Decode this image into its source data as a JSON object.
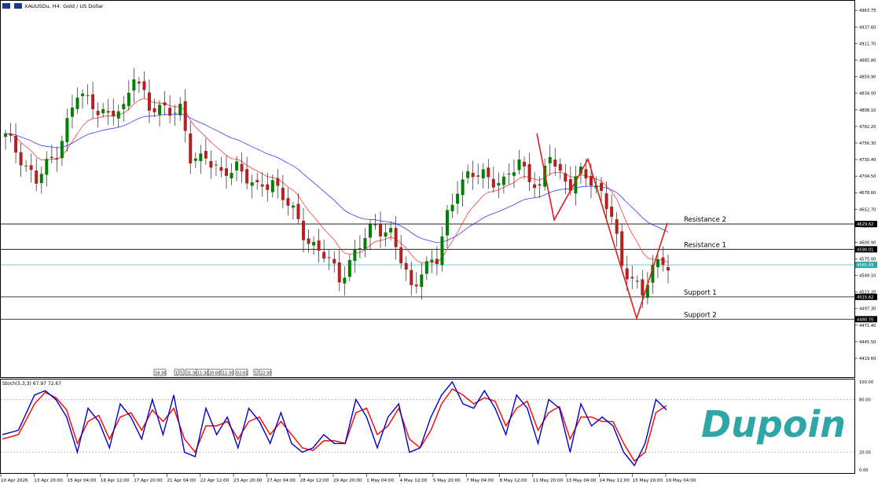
{
  "header": {
    "symbol_text": "XAUUSDu, H4:  Gold / US Dollar"
  },
  "oscillator": {
    "label": "Stoch(5,3,3) 67.97 72.67",
    "levels": [
      "100.00",
      "80.00",
      "20.00",
      "0.00"
    ],
    "main_color": "#0000cc",
    "signal_color": "#ff0000"
  },
  "levels": [
    {
      "name": "Resistance 2",
      "value": 4629.62,
      "tag": "4629.62"
    },
    {
      "name": "Resistance 1",
      "value": 4590.01,
      "tag": "4590.01"
    },
    {
      "name": "Support 1",
      "value": 4515.62,
      "tag": "4515.62"
    },
    {
      "name": "Support 2",
      "value": 4480.7,
      "tag": "4480.70"
    }
  ],
  "current_price": {
    "value": 4565.69,
    "tag": "4565.69",
    "color": "#2fa6a6"
  },
  "period_boxes": [
    "18:30",
    "1",
    "1",
    "21:30",
    "11:30",
    "20:00",
    "11:30",
    "02:01",
    "1",
    "22:30"
  ],
  "logo": {
    "text": "Dupoin",
    "color": "#2fa6a6"
  },
  "colors": {
    "bull": "#008000",
    "bear": "#b22222",
    "ma_fast": "#ff3b3b",
    "ma_slow": "#3a3aff",
    "zigzag": "#e21b1b"
  },
  "chart_data": {
    "type": "candlestick",
    "title": "XAUUSDu, H4: Gold / US Dollar",
    "ylim": [
      4395,
      4975
    ],
    "y_ticks": [
      4963.75,
      4937.6,
      4911.7,
      4885.8,
      4859.9,
      4834.0,
      4808.1,
      4782.2,
      4756.3,
      4730.4,
      4704.5,
      4678.6,
      4652.7,
      4626.8,
      4600.9,
      4575.0,
      4549.1,
      4523.2,
      4497.3,
      4471.4,
      4445.5,
      4419.6
    ],
    "x_labels": [
      "10 Apr 2026",
      "13 Apr 20:00",
      "15 Apr 04:00",
      "16 Apr 12:00",
      "17 Apr 20:00",
      "21 Apr 04:00",
      "22 Apr 12:00",
      "23 Apr 20:00",
      "27 Apr 04:00",
      "28 Apr 12:00",
      "29 Apr 20:00",
      "1 May 04:00",
      "4 May 12:00",
      "5 May 20:00",
      "7 May 04:00",
      "8 May 12:00",
      "11 May 20:00",
      "13 May 04:00",
      "14 May 12:00",
      "15 May 20:00",
      "19 May 04:00"
    ],
    "close_anchors": [
      [
        0,
        4765
      ],
      [
        3,
        4735
      ],
      [
        6,
        4695
      ],
      [
        10,
        4745
      ],
      [
        14,
        4830
      ],
      [
        17,
        4820
      ],
      [
        20,
        4795
      ],
      [
        23,
        4810
      ],
      [
        25,
        4870
      ],
      [
        28,
        4805
      ],
      [
        31,
        4815
      ],
      [
        34,
        4805
      ],
      [
        36,
        4730
      ],
      [
        39,
        4740
      ],
      [
        42,
        4700
      ],
      [
        45,
        4725
      ],
      [
        49,
        4680
      ],
      [
        52,
        4700
      ],
      [
        55,
        4660
      ],
      [
        58,
        4615
      ],
      [
        62,
        4580
      ],
      [
        65,
        4545
      ],
      [
        68,
        4585
      ],
      [
        70,
        4605
      ],
      [
        72,
        4630
      ],
      [
        75,
        4615
      ],
      [
        77,
        4570
      ],
      [
        79,
        4530
      ],
      [
        81,
        4560
      ],
      [
        84,
        4570
      ],
      [
        86,
        4645
      ],
      [
        88,
        4690
      ],
      [
        90,
        4700
      ],
      [
        93,
        4710
      ],
      [
        95,
        4700
      ],
      [
        97,
        4690
      ],
      [
        100,
        4730
      ],
      [
        102,
        4705
      ],
      [
        104,
        4680
      ],
      [
        106,
        4740
      ],
      [
        108,
        4710
      ],
      [
        110,
        4690
      ],
      [
        112,
        4705
      ],
      [
        114,
        4700
      ],
      [
        116,
        4680
      ],
      [
        118,
        4640
      ],
      [
        120,
        4560
      ],
      [
        122,
        4550
      ],
      [
        124,
        4520
      ],
      [
        126,
        4555
      ],
      [
        128,
        4575
      ],
      [
        129,
        4568
      ]
    ],
    "stoch_anchors": {
      "main": [
        [
          0,
          40
        ],
        [
          3,
          45
        ],
        [
          6,
          85
        ],
        [
          8,
          90
        ],
        [
          10,
          80
        ],
        [
          12,
          60
        ],
        [
          14,
          20
        ],
        [
          16,
          70
        ],
        [
          18,
          55
        ],
        [
          20,
          25
        ],
        [
          22,
          75
        ],
        [
          24,
          60
        ],
        [
          26,
          35
        ],
        [
          28,
          80
        ],
        [
          30,
          40
        ],
        [
          32,
          85
        ],
        [
          34,
          20
        ],
        [
          36,
          15
        ],
        [
          38,
          70
        ],
        [
          40,
          40
        ],
        [
          42,
          60
        ],
        [
          44,
          25
        ],
        [
          46,
          70
        ],
        [
          48,
          55
        ],
        [
          50,
          30
        ],
        [
          52,
          65
        ],
        [
          54,
          30
        ],
        [
          56,
          20
        ],
        [
          58,
          25
        ],
        [
          60,
          40
        ],
        [
          62,
          30
        ],
        [
          64,
          30
        ],
        [
          66,
          80
        ],
        [
          68,
          60
        ],
        [
          70,
          25
        ],
        [
          72,
          60
        ],
        [
          74,
          75
        ],
        [
          76,
          20
        ],
        [
          78,
          25
        ],
        [
          80,
          60
        ],
        [
          82,
          85
        ],
        [
          84,
          100
        ],
        [
          86,
          75
        ],
        [
          88,
          70
        ],
        [
          90,
          90
        ],
        [
          92,
          70
        ],
        [
          94,
          40
        ],
        [
          96,
          85
        ],
        [
          98,
          70
        ],
        [
          100,
          30
        ],
        [
          102,
          80
        ],
        [
          104,
          70
        ],
        [
          106,
          20
        ],
        [
          108,
          75
        ],
        [
          110,
          50
        ],
        [
          112,
          60
        ],
        [
          114,
          50
        ],
        [
          116,
          20
        ],
        [
          118,
          5
        ],
        [
          120,
          30
        ],
        [
          122,
          80
        ],
        [
          124,
          68
        ]
      ],
      "signal": [
        [
          0,
          35
        ],
        [
          3,
          40
        ],
        [
          6,
          75
        ],
        [
          8,
          88
        ],
        [
          10,
          82
        ],
        [
          12,
          68
        ],
        [
          14,
          30
        ],
        [
          16,
          55
        ],
        [
          18,
          62
        ],
        [
          20,
          35
        ],
        [
          22,
          60
        ],
        [
          24,
          65
        ],
        [
          26,
          45
        ],
        [
          28,
          68
        ],
        [
          30,
          55
        ],
        [
          32,
          70
        ],
        [
          34,
          35
        ],
        [
          36,
          20
        ],
        [
          38,
          50
        ],
        [
          40,
          50
        ],
        [
          42,
          55
        ],
        [
          44,
          35
        ],
        [
          46,
          55
        ],
        [
          48,
          60
        ],
        [
          50,
          40
        ],
        [
          52,
          55
        ],
        [
          54,
          40
        ],
        [
          56,
          25
        ],
        [
          58,
          22
        ],
        [
          60,
          33
        ],
        [
          62,
          33
        ],
        [
          64,
          30
        ],
        [
          66,
          65
        ],
        [
          68,
          70
        ],
        [
          70,
          40
        ],
        [
          72,
          50
        ],
        [
          74,
          70
        ],
        [
          76,
          35
        ],
        [
          78,
          25
        ],
        [
          80,
          45
        ],
        [
          82,
          75
        ],
        [
          84,
          92
        ],
        [
          86,
          85
        ],
        [
          88,
          75
        ],
        [
          90,
          82
        ],
        [
          92,
          78
        ],
        [
          94,
          50
        ],
        [
          96,
          70
        ],
        [
          98,
          78
        ],
        [
          100,
          45
        ],
        [
          102,
          65
        ],
        [
          104,
          72
        ],
        [
          106,
          35
        ],
        [
          108,
          60
        ],
        [
          110,
          60
        ],
        [
          112,
          55
        ],
        [
          114,
          55
        ],
        [
          116,
          30
        ],
        [
          118,
          10
        ],
        [
          120,
          20
        ],
        [
          122,
          65
        ],
        [
          124,
          73
        ]
      ]
    },
    "zigzag": [
      [
        4771,
        4771
      ],
      [
        4636,
        4636
      ],
      [
        4731,
        4731
      ],
      [
        4482,
        4482
      ],
      [
        4631,
        4631
      ]
    ]
  }
}
